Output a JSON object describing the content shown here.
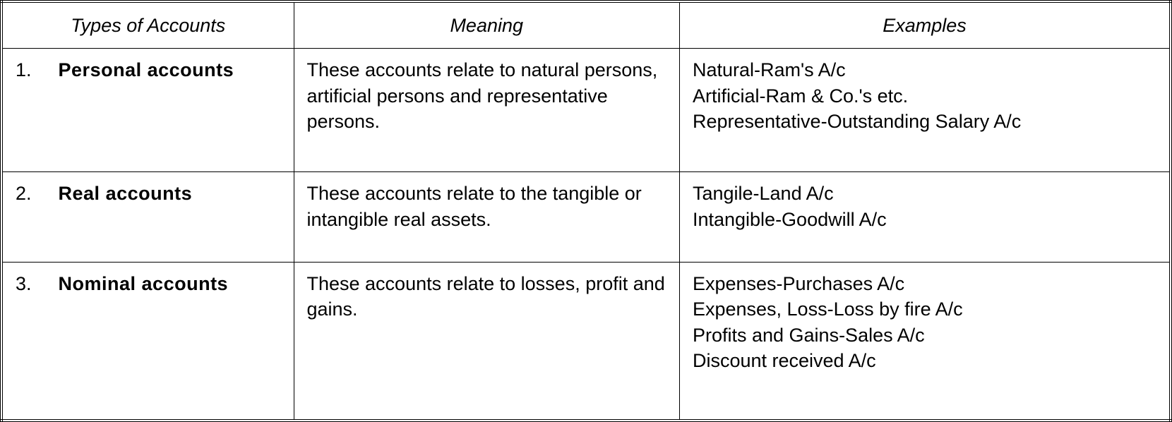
{
  "table": {
    "type": "table",
    "background_color": "#ffffff",
    "text_color": "#000000",
    "border_color": "#000000",
    "outer_border_style": "double",
    "font_family": "Arial, Helvetica, sans-serif",
    "header_fontsize": 27,
    "cell_fontsize": 27,
    "header_font_style": "italic",
    "type_name_font_weight": "bold",
    "column_widths_pct": [
      25,
      33,
      42
    ],
    "columns": [
      {
        "key": "types",
        "label": "Types of Accounts"
      },
      {
        "key": "meaning",
        "label": "Meaning"
      },
      {
        "key": "examples",
        "label": "Examples"
      }
    ],
    "rows": [
      {
        "num": "1.",
        "name": "Personal accounts",
        "meaning": "These accounts relate to natural persons, artificial persons and representative persons.",
        "examples": "Natural-Ram's A/c\nArtificial-Ram & Co.'s etc.\nRepresentative-Outstanding Salary A/c"
      },
      {
        "num": "2.",
        "name": "Real accounts",
        "meaning": "These accounts relate to the tangible or intangible real assets.",
        "examples": "Tangile-Land A/c\nIntangible-Goodwill A/c"
      },
      {
        "num": "3.",
        "name": "Nominal accounts",
        "meaning": "These accounts relate to losses, profit and gains.",
        "examples": "Expenses-Purchases A/c\nExpenses, Loss-Loss by fire A/c\nProfits and Gains-Sales A/c\nDiscount received A/c"
      }
    ]
  }
}
